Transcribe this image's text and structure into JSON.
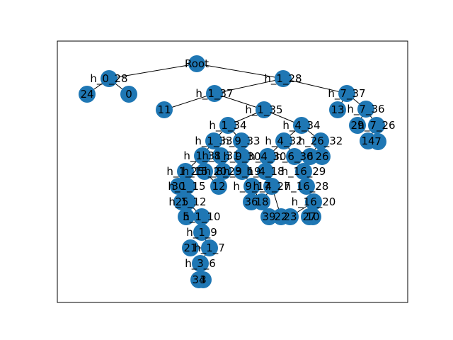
{
  "colors": {
    "node": "#1f77b4",
    "edge": "#000000",
    "label": "#000000",
    "frame": "#000000"
  },
  "nodes": [
    {
      "id": "Root",
      "label": "Root"
    },
    {
      "id": "h_0_28",
      "label": "h_0_28"
    },
    {
      "id": "24",
      "label": "24"
    },
    {
      "id": "0",
      "label": "0"
    },
    {
      "id": "h_1_28",
      "label": "h_1_28"
    },
    {
      "id": "h_1_37",
      "label": "h_1_37"
    },
    {
      "id": "11",
      "label": "11"
    },
    {
      "id": "h_7_37",
      "label": "h_7_37"
    },
    {
      "id": "13",
      "label": "13"
    },
    {
      "id": "h_7_36",
      "label": "h_7_36"
    },
    {
      "id": "29",
      "label": "29"
    },
    {
      "id": "h_7_26",
      "label": "h_7_26"
    },
    {
      "id": "14",
      "label": "14"
    },
    {
      "id": "7",
      "label": "7"
    },
    {
      "id": "h_1_35",
      "label": "h_1_35"
    },
    {
      "id": "h_1_34",
      "label": "h_1_34"
    },
    {
      "id": "h_4_34",
      "label": "h_4_34"
    },
    {
      "id": "h_1_33",
      "label": "h_1_33"
    },
    {
      "id": "h_9_33",
      "label": "h_9_33"
    },
    {
      "id": "h_4_32",
      "label": "h_4_32"
    },
    {
      "id": "h_26_32",
      "label": "h_26_32"
    },
    {
      "id": "6",
      "label": "6"
    },
    {
      "id": "26",
      "label": "26"
    },
    {
      "id": "h_1_31",
      "label": "h_1_31"
    },
    {
      "id": "h_8_31",
      "label": "h_8_31"
    },
    {
      "id": "h_9_30",
      "label": "h_9_30"
    },
    {
      "id": "h_4_30",
      "label": "h_4_30"
    },
    {
      "id": "h_6_30",
      "label": "h_6_30"
    },
    {
      "id": "h_1_25",
      "label": "h_1_25"
    },
    {
      "id": "h_15_20",
      "label": "h_15_20"
    },
    {
      "id": "h_8_23",
      "label": "h_8_23"
    },
    {
      "id": "h_9_19",
      "label": "h_9_19"
    },
    {
      "id": "h_4_18",
      "label": "h_4_18"
    },
    {
      "id": "h_16_29",
      "label": "h_16_29"
    },
    {
      "id": "h_1_15",
      "label": "h_1_15"
    },
    {
      "id": "30",
      "label": "30"
    },
    {
      "id": "12",
      "label": "12"
    },
    {
      "id": "h_9_17",
      "label": "h_9_17"
    },
    {
      "id": "h_4_27",
      "label": "h_4_27"
    },
    {
      "id": "h_16_28",
      "label": "h_16_28"
    },
    {
      "id": "h_1_12",
      "label": "h_1_12"
    },
    {
      "id": "25",
      "label": "25"
    },
    {
      "id": "h_16_20",
      "label": "h_16_20"
    },
    {
      "id": "h_1_10",
      "label": "h_1_10"
    },
    {
      "id": "5",
      "label": "5"
    },
    {
      "id": "h_1_9",
      "label": "h_1_9"
    },
    {
      "id": "h_1_7",
      "label": "h_1_7"
    },
    {
      "id": "21",
      "label": "21"
    },
    {
      "id": "h_3_6",
      "label": "h_3_6"
    },
    {
      "id": "3",
      "label": "3"
    },
    {
      "id": "34",
      "label": "34"
    },
    {
      "id": "36",
      "label": "36"
    },
    {
      "id": "39",
      "label": "39"
    },
    {
      "id": "18",
      "label": "18"
    },
    {
      "id": "22",
      "label": "22"
    },
    {
      "id": "23",
      "label": "23"
    },
    {
      "id": "27",
      "label": "27"
    },
    {
      "id": "10",
      "label": "10"
    }
  ],
  "edges": [
    [
      "Root",
      "h_0_28"
    ],
    [
      "Root",
      "h_1_28"
    ],
    [
      "h_0_28",
      "24"
    ],
    [
      "h_0_28",
      "0"
    ],
    [
      "h_1_28",
      "h_1_37"
    ],
    [
      "h_1_28",
      "h_7_37"
    ],
    [
      "h_1_37",
      "11"
    ],
    [
      "h_1_37",
      "h_1_35"
    ],
    [
      "h_7_37",
      "13"
    ],
    [
      "h_7_37",
      "h_7_36"
    ],
    [
      "h_7_36",
      "29"
    ],
    [
      "h_7_36",
      "h_7_26"
    ],
    [
      "h_7_26",
      "14"
    ],
    [
      "h_7_26",
      "7"
    ],
    [
      "h_1_35",
      "h_1_34"
    ],
    [
      "h_1_35",
      "h_4_34"
    ],
    [
      "h_1_34",
      "h_1_33"
    ],
    [
      "h_1_34",
      "h_9_33"
    ],
    [
      "h_4_34",
      "h_4_32"
    ],
    [
      "h_4_34",
      "h_26_32"
    ],
    [
      "h_26_32",
      "6"
    ],
    [
      "h_26_32",
      "26"
    ],
    [
      "h_1_33",
      "h_1_31"
    ],
    [
      "h_1_33",
      "h_8_31"
    ],
    [
      "h_9_33",
      "h_9_30"
    ],
    [
      "h_4_32",
      "h_4_30"
    ],
    [
      "h_4_32",
      "h_6_30"
    ],
    [
      "h_1_31",
      "h_1_25"
    ],
    [
      "h_1_31",
      "h_15_20"
    ],
    [
      "h_8_31",
      "h_8_23"
    ],
    [
      "h_9_30",
      "h_9_19"
    ],
    [
      "h_4_30",
      "h_4_18"
    ],
    [
      "h_6_30",
      "h_16_29"
    ],
    [
      "h_1_25",
      "h_1_15"
    ],
    [
      "h_1_25",
      "30"
    ],
    [
      "h_15_20",
      "12"
    ],
    [
      "h_9_19",
      "h_9_17"
    ],
    [
      "h_4_18",
      "h_4_27"
    ],
    [
      "h_16_29",
      "h_16_28"
    ],
    [
      "h_1_15",
      "h_1_12"
    ],
    [
      "h_1_12",
      "25"
    ],
    [
      "h_16_28",
      "h_16_20"
    ],
    [
      "h_1_12",
      "h_1_10"
    ],
    [
      "h_1_10",
      "5"
    ],
    [
      "h_1_10",
      "h_1_9"
    ],
    [
      "h_1_9",
      "h_1_7"
    ],
    [
      "h_1_7",
      "21"
    ],
    [
      "h_1_7",
      "h_3_6"
    ],
    [
      "h_3_6",
      "3"
    ],
    [
      "h_3_6",
      "34"
    ],
    [
      "h_9_17",
      "36"
    ],
    [
      "h_9_17",
      "39"
    ],
    [
      "h_4_27",
      "18"
    ],
    [
      "h_4_27",
      "22"
    ],
    [
      "h_16_20",
      "23"
    ],
    [
      "h_16_20",
      "27"
    ],
    [
      "h_16_20",
      "10"
    ]
  ]
}
